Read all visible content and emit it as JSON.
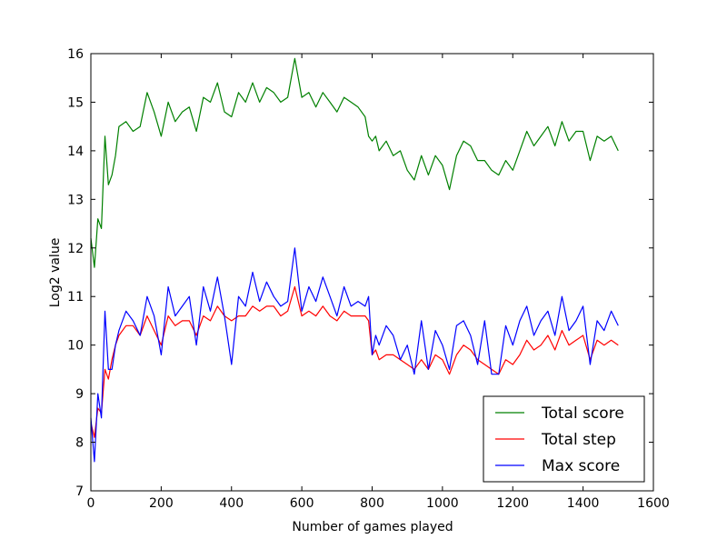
{
  "chart_data": {
    "type": "line",
    "title": "",
    "xlabel": "Number of games played",
    "ylabel": "Log2 value",
    "xlim": [
      0,
      1600
    ],
    "ylim": [
      7,
      16
    ],
    "xticks": [
      0,
      200,
      400,
      600,
      800,
      1000,
      1200,
      1400,
      1600
    ],
    "yticks": [
      7,
      8,
      9,
      10,
      11,
      12,
      13,
      14,
      15,
      16
    ],
    "grid": false,
    "legend_placement": "lower-right",
    "series": [
      {
        "name": "Total score",
        "color": "#008000",
        "x": [
          0,
          10,
          20,
          30,
          40,
          50,
          60,
          70,
          80,
          100,
          120,
          140,
          160,
          180,
          200,
          220,
          240,
          260,
          280,
          300,
          320,
          340,
          360,
          380,
          400,
          420,
          440,
          460,
          480,
          500,
          520,
          540,
          560,
          580,
          600,
          620,
          640,
          660,
          680,
          700,
          720,
          740,
          760,
          780,
          790,
          800,
          810,
          820,
          840,
          860,
          880,
          900,
          920,
          940,
          960,
          980,
          1000,
          1020,
          1040,
          1060,
          1080,
          1100,
          1120,
          1140,
          1160,
          1180,
          1200,
          1220,
          1240,
          1260,
          1280,
          1300,
          1320,
          1340,
          1360,
          1380,
          1400,
          1420,
          1440,
          1460,
          1480,
          1500
        ],
        "y": [
          12.2,
          11.6,
          12.6,
          12.4,
          14.3,
          13.3,
          13.5,
          13.9,
          14.5,
          14.6,
          14.4,
          14.5,
          15.2,
          14.8,
          14.3,
          15.0,
          14.6,
          14.8,
          14.9,
          14.4,
          15.1,
          15.0,
          15.4,
          14.8,
          14.7,
          15.2,
          15.0,
          15.4,
          15.0,
          15.3,
          15.2,
          15.0,
          15.1,
          15.9,
          15.1,
          15.2,
          14.9,
          15.2,
          15.0,
          14.8,
          15.1,
          15.0,
          14.9,
          14.7,
          14.3,
          14.2,
          14.3,
          14.0,
          14.2,
          13.9,
          14.0,
          13.6,
          13.4,
          13.9,
          13.5,
          13.9,
          13.7,
          13.2,
          13.9,
          14.2,
          14.1,
          13.8,
          13.8,
          13.6,
          13.5,
          13.8,
          13.6,
          14.0,
          14.4,
          14.1,
          14.3,
          14.5,
          14.1,
          14.6,
          14.2,
          14.4,
          14.4,
          13.8,
          14.3,
          14.2,
          14.3,
          14.0
        ]
      },
      {
        "name": "Total step",
        "color": "#ff0000",
        "x": [
          0,
          10,
          20,
          30,
          40,
          50,
          60,
          70,
          80,
          100,
          120,
          140,
          160,
          180,
          200,
          220,
          240,
          260,
          280,
          300,
          320,
          340,
          360,
          380,
          400,
          420,
          440,
          460,
          480,
          500,
          520,
          540,
          560,
          580,
          600,
          620,
          640,
          660,
          680,
          700,
          720,
          740,
          760,
          780,
          790,
          800,
          810,
          820,
          840,
          860,
          880,
          900,
          920,
          940,
          960,
          980,
          1000,
          1020,
          1040,
          1060,
          1080,
          1100,
          1120,
          1140,
          1160,
          1180,
          1200,
          1220,
          1240,
          1260,
          1280,
          1300,
          1320,
          1340,
          1360,
          1380,
          1400,
          1420,
          1440,
          1460,
          1480,
          1500
        ],
        "y": [
          8.4,
          8.1,
          8.7,
          8.6,
          9.5,
          9.3,
          9.7,
          10.0,
          10.2,
          10.4,
          10.4,
          10.2,
          10.6,
          10.3,
          10.0,
          10.6,
          10.4,
          10.5,
          10.5,
          10.2,
          10.6,
          10.5,
          10.8,
          10.6,
          10.5,
          10.6,
          10.6,
          10.8,
          10.7,
          10.8,
          10.8,
          10.6,
          10.7,
          11.2,
          10.6,
          10.7,
          10.6,
          10.8,
          10.6,
          10.5,
          10.7,
          10.6,
          10.6,
          10.6,
          10.5,
          9.8,
          9.9,
          9.7,
          9.8,
          9.8,
          9.7,
          9.6,
          9.5,
          9.7,
          9.5,
          9.8,
          9.7,
          9.4,
          9.8,
          10.0,
          9.9,
          9.7,
          9.6,
          9.5,
          9.4,
          9.7,
          9.6,
          9.8,
          10.1,
          9.9,
          10.0,
          10.2,
          9.9,
          10.3,
          10.0,
          10.1,
          10.2,
          9.7,
          10.1,
          10.0,
          10.1,
          10.0
        ]
      },
      {
        "name": "Max score",
        "color": "#0000ff",
        "x": [
          0,
          10,
          20,
          30,
          40,
          50,
          60,
          70,
          80,
          100,
          120,
          140,
          160,
          180,
          200,
          220,
          240,
          260,
          280,
          300,
          320,
          340,
          360,
          380,
          400,
          420,
          440,
          460,
          480,
          500,
          520,
          540,
          560,
          580,
          600,
          620,
          640,
          660,
          680,
          700,
          720,
          740,
          760,
          780,
          790,
          800,
          810,
          820,
          840,
          860,
          880,
          900,
          920,
          940,
          960,
          980,
          1000,
          1020,
          1040,
          1060,
          1080,
          1100,
          1120,
          1140,
          1160,
          1180,
          1200,
          1220,
          1240,
          1260,
          1280,
          1300,
          1320,
          1340,
          1360,
          1380,
          1400,
          1420,
          1440,
          1460,
          1480,
          1500
        ],
        "y": [
          8.5,
          7.6,
          9.0,
          8.5,
          10.7,
          9.5,
          9.5,
          10.0,
          10.3,
          10.7,
          10.5,
          10.2,
          11.0,
          10.6,
          9.8,
          11.2,
          10.6,
          10.8,
          11.0,
          10.0,
          11.2,
          10.7,
          11.4,
          10.6,
          9.6,
          11.0,
          10.8,
          11.5,
          10.9,
          11.3,
          11.0,
          10.8,
          10.9,
          12.0,
          10.7,
          11.2,
          10.9,
          11.4,
          11.0,
          10.6,
          11.2,
          10.8,
          10.9,
          10.8,
          11.0,
          9.8,
          10.2,
          10.0,
          10.4,
          10.2,
          9.7,
          10.0,
          9.4,
          10.5,
          9.5,
          10.3,
          10.0,
          9.5,
          10.4,
          10.5,
          10.2,
          9.6,
          10.5,
          9.4,
          9.4,
          10.4,
          10.0,
          10.5,
          10.8,
          10.2,
          10.5,
          10.7,
          10.2,
          11.0,
          10.3,
          10.5,
          10.8,
          9.6,
          10.5,
          10.3,
          10.7,
          10.4
        ]
      }
    ]
  }
}
